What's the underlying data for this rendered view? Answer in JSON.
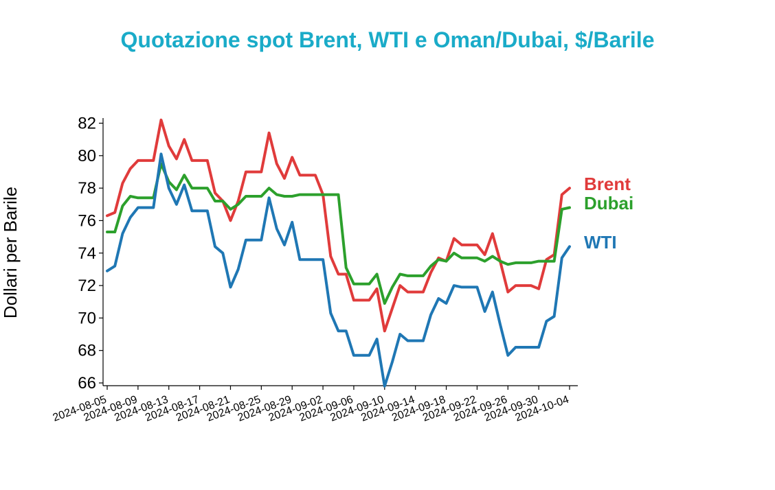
{
  "chart_data": {
    "type": "line",
    "title": "Quotazione spot Brent, WTI e Oman/Dubai, $/Barile",
    "xlabel": "",
    "ylabel": "Dollari per Barile",
    "ylim": [
      66,
      82.4
    ],
    "xlim": [
      "2024-08-05",
      "2024-10-04"
    ],
    "yticks": [
      "66",
      "68",
      "70",
      "72",
      "74",
      "76",
      "78",
      "80",
      "82"
    ],
    "xticks": [
      "2024-08-05",
      "2024-08-09",
      "2024-08-13",
      "2024-08-17",
      "2024-08-21",
      "2024-08-25",
      "2024-08-29",
      "2024-09-02",
      "2024-09-06",
      "2024-09-10",
      "2024-09-14",
      "2024-09-18",
      "2024-09-22",
      "2024-09-26",
      "2024-09-30",
      "2024-10-04"
    ],
    "grid": false,
    "legend": "right, at line ends",
    "colors": {
      "title": "#1aabc8",
      "Brent": "#e03b3b",
      "Dubai": "#2ca02c",
      "WTI": "#1f77b4"
    },
    "series": [
      {
        "name": "Brent",
        "points": [
          [
            "2024-08-05",
            76.3
          ],
          [
            "2024-08-06",
            76.5
          ],
          [
            "2024-08-07",
            78.3
          ],
          [
            "2024-08-08",
            79.2
          ],
          [
            "2024-08-09",
            79.7
          ],
          [
            "2024-08-10",
            79.7
          ],
          [
            "2024-08-11",
            79.7
          ],
          [
            "2024-08-12",
            82.2
          ],
          [
            "2024-08-13",
            80.6
          ],
          [
            "2024-08-14",
            79.8
          ],
          [
            "2024-08-15",
            81.0
          ],
          [
            "2024-08-16",
            79.7
          ],
          [
            "2024-08-17",
            79.7
          ],
          [
            "2024-08-18",
            79.7
          ],
          [
            "2024-08-19",
            77.7
          ],
          [
            "2024-08-20",
            77.2
          ],
          [
            "2024-08-21",
            76.0
          ],
          [
            "2024-08-22",
            77.2
          ],
          [
            "2024-08-23",
            79.0
          ],
          [
            "2024-08-24",
            79.0
          ],
          [
            "2024-08-25",
            79.0
          ],
          [
            "2024-08-26",
            81.4
          ],
          [
            "2024-08-27",
            79.5
          ],
          [
            "2024-08-28",
            78.6
          ],
          [
            "2024-08-29",
            79.9
          ],
          [
            "2024-08-30",
            78.8
          ],
          [
            "2024-08-31",
            78.8
          ],
          [
            "2024-09-01",
            78.8
          ],
          [
            "2024-09-02",
            77.6
          ],
          [
            "2024-09-03",
            73.8
          ],
          [
            "2024-09-04",
            72.7
          ],
          [
            "2024-09-05",
            72.7
          ],
          [
            "2024-09-06",
            71.1
          ],
          [
            "2024-09-07",
            71.1
          ],
          [
            "2024-09-08",
            71.1
          ],
          [
            "2024-09-09",
            71.8
          ],
          [
            "2024-09-10",
            69.2
          ],
          [
            "2024-09-11",
            70.6
          ],
          [
            "2024-09-12",
            72.0
          ],
          [
            "2024-09-13",
            71.6
          ],
          [
            "2024-09-14",
            71.6
          ],
          [
            "2024-09-15",
            71.6
          ],
          [
            "2024-09-16",
            72.8
          ],
          [
            "2024-09-17",
            73.7
          ],
          [
            "2024-09-18",
            73.5
          ],
          [
            "2024-09-19",
            74.9
          ],
          [
            "2024-09-20",
            74.5
          ],
          [
            "2024-09-21",
            74.5
          ],
          [
            "2024-09-22",
            74.5
          ],
          [
            "2024-09-23",
            73.9
          ],
          [
            "2024-09-24",
            75.2
          ],
          [
            "2024-09-25",
            73.5
          ],
          [
            "2024-09-26",
            71.6
          ],
          [
            "2024-09-27",
            72.0
          ],
          [
            "2024-09-28",
            72.0
          ],
          [
            "2024-09-29",
            72.0
          ],
          [
            "2024-09-30",
            71.8
          ],
          [
            "2024-10-01",
            73.6
          ],
          [
            "2024-10-02",
            73.9
          ],
          [
            "2024-10-03",
            77.6
          ],
          [
            "2024-10-04",
            78.0
          ]
        ]
      },
      {
        "name": "Dubai",
        "points": [
          [
            "2024-08-05",
            75.3
          ],
          [
            "2024-08-06",
            75.3
          ],
          [
            "2024-08-07",
            76.9
          ],
          [
            "2024-08-08",
            77.5
          ],
          [
            "2024-08-09",
            77.4
          ],
          [
            "2024-08-10",
            77.4
          ],
          [
            "2024-08-11",
            77.4
          ],
          [
            "2024-08-12",
            79.5
          ],
          [
            "2024-08-13",
            78.4
          ],
          [
            "2024-08-14",
            77.9
          ],
          [
            "2024-08-15",
            78.8
          ],
          [
            "2024-08-16",
            78.0
          ],
          [
            "2024-08-17",
            78.0
          ],
          [
            "2024-08-18",
            78.0
          ],
          [
            "2024-08-19",
            77.2
          ],
          [
            "2024-08-20",
            77.2
          ],
          [
            "2024-08-21",
            76.7
          ],
          [
            "2024-08-22",
            77.0
          ],
          [
            "2024-08-23",
            77.5
          ],
          [
            "2024-08-24",
            77.5
          ],
          [
            "2024-08-25",
            77.5
          ],
          [
            "2024-08-26",
            78.0
          ],
          [
            "2024-08-27",
            77.6
          ],
          [
            "2024-08-28",
            77.5
          ],
          [
            "2024-08-29",
            77.5
          ],
          [
            "2024-08-30",
            77.6
          ],
          [
            "2024-08-31",
            77.6
          ],
          [
            "2024-09-01",
            77.6
          ],
          [
            "2024-09-02",
            77.6
          ],
          [
            "2024-09-03",
            77.6
          ],
          [
            "2024-09-04",
            77.6
          ],
          [
            "2024-09-05",
            73.1
          ],
          [
            "2024-09-06",
            72.1
          ],
          [
            "2024-09-07",
            72.1
          ],
          [
            "2024-09-08",
            72.1
          ],
          [
            "2024-09-09",
            72.7
          ],
          [
            "2024-09-10",
            70.9
          ],
          [
            "2024-09-11",
            71.9
          ],
          [
            "2024-09-12",
            72.7
          ],
          [
            "2024-09-13",
            72.6
          ],
          [
            "2024-09-14",
            72.6
          ],
          [
            "2024-09-15",
            72.6
          ],
          [
            "2024-09-16",
            73.2
          ],
          [
            "2024-09-17",
            73.6
          ],
          [
            "2024-09-18",
            73.5
          ],
          [
            "2024-09-19",
            74.0
          ],
          [
            "2024-09-20",
            73.7
          ],
          [
            "2024-09-21",
            73.7
          ],
          [
            "2024-09-22",
            73.7
          ],
          [
            "2024-09-23",
            73.5
          ],
          [
            "2024-09-24",
            73.8
          ],
          [
            "2024-09-25",
            73.5
          ],
          [
            "2024-09-26",
            73.3
          ],
          [
            "2024-09-27",
            73.4
          ],
          [
            "2024-09-28",
            73.4
          ],
          [
            "2024-09-29",
            73.4
          ],
          [
            "2024-09-30",
            73.5
          ],
          [
            "2024-10-01",
            73.5
          ],
          [
            "2024-10-02",
            73.5
          ],
          [
            "2024-10-03",
            76.7
          ],
          [
            "2024-10-04",
            76.8
          ]
        ]
      },
      {
        "name": "WTI",
        "points": [
          [
            "2024-08-05",
            72.9
          ],
          [
            "2024-08-06",
            73.2
          ],
          [
            "2024-08-07",
            75.2
          ],
          [
            "2024-08-08",
            76.2
          ],
          [
            "2024-08-09",
            76.8
          ],
          [
            "2024-08-10",
            76.8
          ],
          [
            "2024-08-11",
            76.8
          ],
          [
            "2024-08-12",
            80.1
          ],
          [
            "2024-08-13",
            78.0
          ],
          [
            "2024-08-14",
            77.0
          ],
          [
            "2024-08-15",
            78.2
          ],
          [
            "2024-08-16",
            76.6
          ],
          [
            "2024-08-17",
            76.6
          ],
          [
            "2024-08-18",
            76.6
          ],
          [
            "2024-08-19",
            74.4
          ],
          [
            "2024-08-20",
            74.0
          ],
          [
            "2024-08-21",
            71.9
          ],
          [
            "2024-08-22",
            73.0
          ],
          [
            "2024-08-23",
            74.8
          ],
          [
            "2024-08-24",
            74.8
          ],
          [
            "2024-08-25",
            74.8
          ],
          [
            "2024-08-26",
            77.4
          ],
          [
            "2024-08-27",
            75.5
          ],
          [
            "2024-08-28",
            74.5
          ],
          [
            "2024-08-29",
            75.9
          ],
          [
            "2024-08-30",
            73.6
          ],
          [
            "2024-08-31",
            73.6
          ],
          [
            "2024-09-01",
            73.6
          ],
          [
            "2024-09-02",
            73.6
          ],
          [
            "2024-09-03",
            70.3
          ],
          [
            "2024-09-04",
            69.2
          ],
          [
            "2024-09-05",
            69.2
          ],
          [
            "2024-09-06",
            67.7
          ],
          [
            "2024-09-07",
            67.7
          ],
          [
            "2024-09-08",
            67.7
          ],
          [
            "2024-09-09",
            68.7
          ],
          [
            "2024-09-10",
            65.8
          ],
          [
            "2024-09-11",
            67.3
          ],
          [
            "2024-09-12",
            69.0
          ],
          [
            "2024-09-13",
            68.6
          ],
          [
            "2024-09-14",
            68.6
          ],
          [
            "2024-09-15",
            68.6
          ],
          [
            "2024-09-16",
            70.2
          ],
          [
            "2024-09-17",
            71.2
          ],
          [
            "2024-09-18",
            70.9
          ],
          [
            "2024-09-19",
            72.0
          ],
          [
            "2024-09-20",
            71.9
          ],
          [
            "2024-09-21",
            71.9
          ],
          [
            "2024-09-22",
            71.9
          ],
          [
            "2024-09-23",
            70.4
          ],
          [
            "2024-09-24",
            71.6
          ],
          [
            "2024-09-25",
            69.6
          ],
          [
            "2024-09-26",
            67.7
          ],
          [
            "2024-09-27",
            68.2
          ],
          [
            "2024-09-28",
            68.2
          ],
          [
            "2024-09-29",
            68.2
          ],
          [
            "2024-09-30",
            68.2
          ],
          [
            "2024-10-01",
            69.8
          ],
          [
            "2024-10-02",
            70.1
          ],
          [
            "2024-10-03",
            73.7
          ],
          [
            "2024-10-04",
            74.4
          ]
        ]
      }
    ]
  }
}
